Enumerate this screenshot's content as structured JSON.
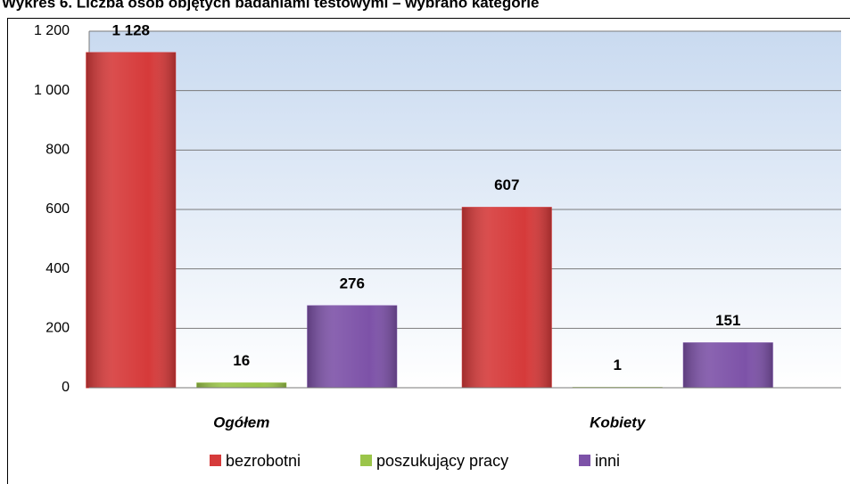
{
  "chart_data": {
    "type": "bar",
    "title": "Wykres 6. Liczba osób objętych badaniami testowymi – wybrano kategorie",
    "categories": [
      "Ogółem",
      "Kobiety"
    ],
    "series": [
      {
        "name": "bezrobotni",
        "color": "#d63a3a",
        "values": [
          1128,
          607
        ],
        "value_labels": [
          "1 128",
          "607"
        ]
      },
      {
        "name": "poszukujący pracy",
        "color": "#9bc54a",
        "values": [
          16,
          1
        ]
      },
      {
        "name": "inni",
        "color": "#7d52a8",
        "values": [
          276,
          151
        ]
      }
    ],
    "ylim": [
      0,
      1200
    ],
    "yticks": [
      0,
      200,
      400,
      600,
      800,
      {
        "value": 1000,
        "label": "1 000"
      },
      {
        "value": 1200,
        "label": "1 200"
      }
    ],
    "grid": true,
    "legend": "bottom"
  }
}
